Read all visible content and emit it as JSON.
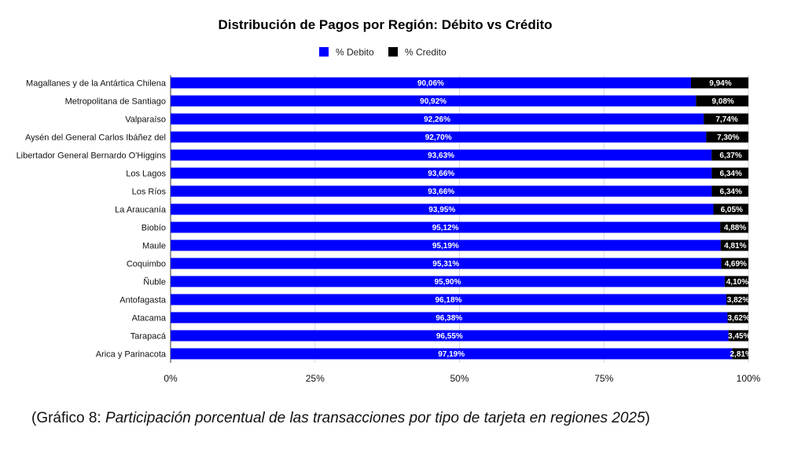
{
  "chart_data": {
    "type": "bar",
    "orientation": "horizontal",
    "stacked": true,
    "title": "Distribución de Pagos por Región: Débito vs Crédito",
    "legend_position": "top",
    "categories": [
      "Magallanes y de la Antártica Chilena",
      "Metropolitana de Santiago",
      "Valparaíso",
      "Aysén del General Carlos Ibáñez del",
      "Libertador General Bernardo O'Higgins",
      "Los Lagos",
      "Los Ríos",
      "La Araucanía",
      "Biobío",
      "Maule",
      "Coquimbo",
      "Ñuble",
      "Antofagasta",
      "Atacama",
      "Tarapacá",
      "Arica y Parinacota"
    ],
    "series": [
      {
        "name": "% Debito",
        "color": "#0000ff",
        "values": [
          90.06,
          90.92,
          92.26,
          92.7,
          93.63,
          93.66,
          93.66,
          93.95,
          95.12,
          95.19,
          95.31,
          95.9,
          96.18,
          96.38,
          96.55,
          97.19
        ],
        "labels": [
          "90,06%",
          "90,92%",
          "92,26%",
          "92,70%",
          "93,63%",
          "93,66%",
          "93,66%",
          "93,95%",
          "95,12%",
          "95,19%",
          "95,31%",
          "95,90%",
          "96,18%",
          "96,38%",
          "96,55%",
          "97,19%"
        ]
      },
      {
        "name": "% Credito",
        "color": "#000000",
        "values": [
          9.94,
          9.08,
          7.74,
          7.3,
          6.37,
          6.34,
          6.34,
          6.05,
          4.88,
          4.81,
          4.69,
          4.1,
          3.82,
          3.62,
          3.45,
          2.81
        ],
        "labels": [
          "9,94%",
          "9,08%",
          "7,74%",
          "7,30%",
          "6,37%",
          "6,34%",
          "6,34%",
          "6,05%",
          "4,88%",
          "4,81%",
          "4,69%",
          "4,10%",
          "3,82%",
          "3,62%",
          "3,45%",
          "2,81%"
        ]
      }
    ],
    "xlim": [
      0,
      100
    ],
    "xticks": [
      0,
      25,
      50,
      75,
      100
    ],
    "xtick_labels": [
      "0%",
      "25%",
      "50%",
      "75%",
      "100%"
    ],
    "grid": true
  },
  "caption": {
    "prefix": "(Gráfico 8: ",
    "italic": "Participación porcentual de las transacciones por tipo de tarjeta en regiones 2025",
    "suffix": ")"
  }
}
